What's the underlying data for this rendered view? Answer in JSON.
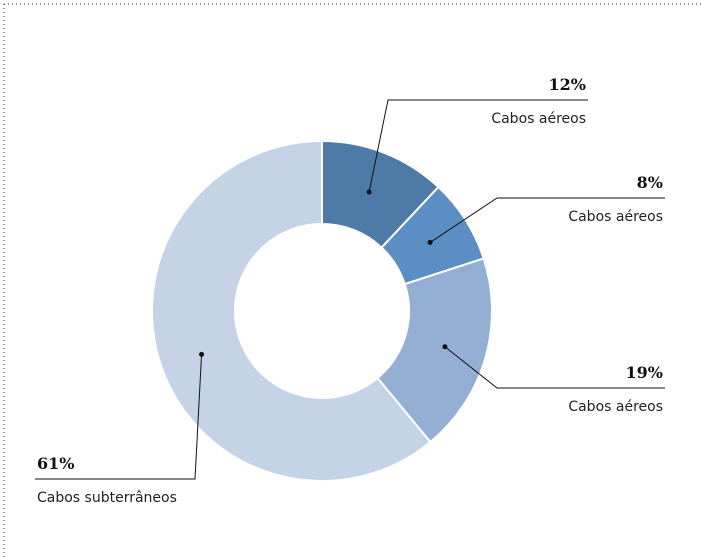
{
  "chart_data": {
    "type": "donut",
    "categories": [
      "Cabos aéreos",
      "Cabos aéreos",
      "Cabos aéreos",
      "Cabos subterrâneos"
    ],
    "values": [
      12,
      8,
      19,
      61
    ],
    "value_labels": [
      "12%",
      "8%",
      "19%",
      "61%"
    ],
    "colors": [
      "#4d7aa6",
      "#5b8fc4",
      "#94afd4",
      "#c5d3e6"
    ]
  }
}
